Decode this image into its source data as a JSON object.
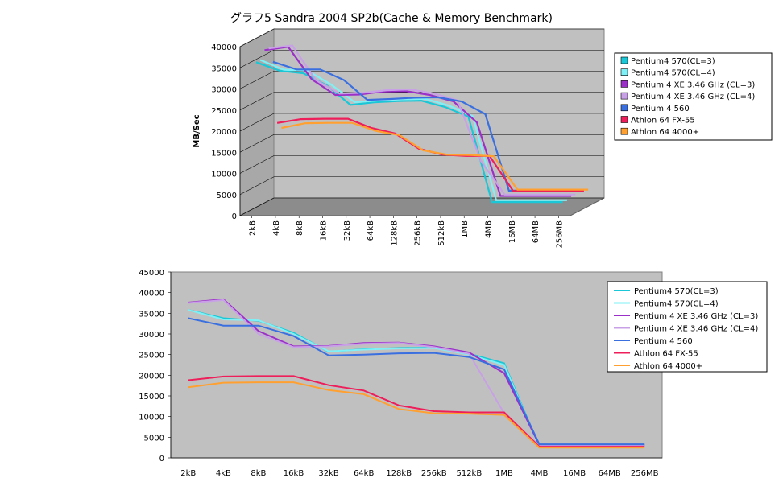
{
  "title": "グラフ5  Sandra 2004 SP2b(Cache & Memory Benchmark)",
  "colors": {
    "p570cl3": "#19c7d6",
    "p570cl4": "#7ff0f5",
    "pxecl3": "#9b30c8",
    "pxecl4": "#c8a0e6",
    "p560": "#3a6fe0",
    "fx55": "#ee1e5a",
    "a4000": "#ffa030"
  },
  "chart_data": [
    {
      "type": "line",
      "variant": "3d",
      "ylabel": "MB/Sec",
      "ylim": [
        0,
        40000
      ],
      "yticks": [
        0,
        5000,
        10000,
        15000,
        20000,
        25000,
        30000,
        35000,
        40000
      ],
      "categories": [
        "2kB",
        "4kB",
        "8kB",
        "16kB",
        "32kB",
        "64kB",
        "128kB",
        "256kB",
        "512kB",
        "1MB",
        "4MB",
        "16MB",
        "64MB",
        "256MB"
      ],
      "legend_position": "right",
      "series": [
        {
          "name": "Pentium4 570(CL=3)",
          "color_key": "p570cl3",
          "values": [
            35800,
            33800,
            33200,
            30300,
            25700,
            26300,
            26600,
            26700,
            25200,
            22900,
            2700,
            2700,
            2700,
            2700
          ]
        },
        {
          "name": "Pentium4 570(CL=4)",
          "color_key": "p570cl4",
          "values": [
            35800,
            33500,
            33300,
            30000,
            25800,
            26200,
            26500,
            26600,
            25000,
            22500,
            2600,
            2600,
            2600,
            2600
          ]
        },
        {
          "name": "Pentium 4 XE 3.46 GHz (CL=3)",
          "color_key": "pxecl3",
          "values": [
            37600,
            38400,
            30700,
            27000,
            27100,
            27800,
            27900,
            27000,
            25500,
            20500,
            3100,
            3100,
            3100,
            3100
          ]
        },
        {
          "name": "Pentium 4 XE 3.46 GHz (CL=4)",
          "color_key": "pxecl4",
          "values": [
            37500,
            38200,
            30000,
            26800,
            27000,
            27600,
            27800,
            26800,
            25200,
            10800,
            2900,
            2900,
            2900,
            2900
          ]
        },
        {
          "name": "Pentium 4 560",
          "color_key": "p560",
          "values": [
            33800,
            32000,
            32000,
            29500,
            24800,
            25000,
            25300,
            25400,
            24400,
            21400,
            3300,
            3300,
            3300,
            3300
          ]
        },
        {
          "name": "Athlon 64 FX-55",
          "color_key": "fx55",
          "values": [
            18800,
            19700,
            19800,
            19800,
            17600,
            16300,
            12700,
            11300,
            11000,
            11000,
            2700,
            2700,
            2700,
            2700
          ]
        },
        {
          "name": "Athlon 64 4000+",
          "color_key": "a4000",
          "values": [
            17100,
            18200,
            18300,
            18300,
            16400,
            15400,
            11800,
            10800,
            10700,
            10400,
            2500,
            2500,
            2500,
            2500
          ]
        }
      ]
    },
    {
      "type": "line",
      "ylim": [
        0,
        45000
      ],
      "yticks": [
        0,
        5000,
        10000,
        15000,
        20000,
        25000,
        30000,
        35000,
        40000,
        45000
      ],
      "categories": [
        "2kB",
        "4kB",
        "8kB",
        "16kB",
        "32kB",
        "64kB",
        "128kB",
        "256kB",
        "512kB",
        "1MB",
        "4MB",
        "16MB",
        "64MB",
        "256MB"
      ],
      "grid": false,
      "legend_position": "right",
      "series": [
        {
          "name": "Pentium4 570(CL=3)",
          "color_key": "p570cl3",
          "values": [
            35800,
            33800,
            33200,
            30300,
            25700,
            26300,
            26600,
            26700,
            25200,
            22900,
            2700,
            2700,
            2700,
            2700
          ]
        },
        {
          "name": "Pentium4 570(CL=4)",
          "color_key": "p570cl4",
          "values": [
            35800,
            33500,
            33300,
            30000,
            25800,
            26200,
            26500,
            26600,
            25000,
            22500,
            2600,
            2600,
            2600,
            2600
          ]
        },
        {
          "name": "Pentium 4 XE 3.46 GHz (CL=3)",
          "color_key": "pxecl3",
          "values": [
            37600,
            38400,
            30700,
            27000,
            27100,
            27800,
            27900,
            27000,
            25500,
            20500,
            3100,
            3100,
            3100,
            3100
          ]
        },
        {
          "name": "Pentium 4 XE 3.46 GHz (CL=4)",
          "color_key": "pxecl4",
          "values": [
            37500,
            38200,
            30000,
            26800,
            27000,
            27600,
            27800,
            26800,
            25200,
            10800,
            2900,
            2900,
            2900,
            2900
          ]
        },
        {
          "name": "Pentium 4 560",
          "color_key": "p560",
          "values": [
            33800,
            32000,
            32000,
            29500,
            24800,
            25000,
            25300,
            25400,
            24400,
            21400,
            3300,
            3300,
            3300,
            3300
          ]
        },
        {
          "name": "Athlon 64 FX-55",
          "color_key": "fx55",
          "values": [
            18800,
            19700,
            19800,
            19800,
            17600,
            16300,
            12700,
            11300,
            11000,
            11000,
            2700,
            2700,
            2700,
            2700
          ]
        },
        {
          "name": "Athlon 64 4000+",
          "color_key": "a4000",
          "values": [
            17100,
            18200,
            18300,
            18300,
            16400,
            15400,
            11800,
            10800,
            10700,
            10400,
            2500,
            2500,
            2500,
            2500
          ]
        }
      ]
    }
  ]
}
